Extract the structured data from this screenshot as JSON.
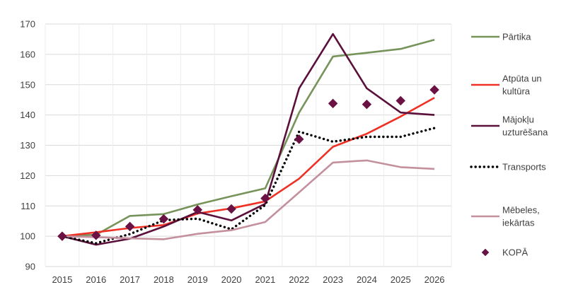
{
  "chart_data": {
    "type": "line",
    "title": "",
    "xlabel": "",
    "ylabel": "",
    "ylim": [
      90,
      170
    ],
    "yticks": [
      90,
      100,
      110,
      120,
      130,
      140,
      150,
      160,
      170
    ],
    "categories": [
      "2015",
      "2016",
      "2017",
      "2018",
      "2019",
      "2020",
      "2021",
      "2022",
      "2023",
      "2024",
      "2025",
      "2026"
    ],
    "grid": "horizontal",
    "legend_position": "right",
    "series": [
      {
        "name": "Pārtika",
        "legend_lines": [
          "Pārtika"
        ],
        "style": "line",
        "color": "#76935a",
        "values": [
          100,
          100.5,
          106.7,
          107.3,
          110.5,
          113.2,
          115.8,
          140.8,
          159.3,
          160.5,
          161.8,
          164.8
        ]
      },
      {
        "name": "Atpūta un kultūra",
        "legend_lines": [
          "Atpūta un",
          "kultūra"
        ],
        "style": "line",
        "color": "#ee3124",
        "values": [
          100,
          101.3,
          102.7,
          103.7,
          107.5,
          109.2,
          111.5,
          119.0,
          129.5,
          133.8,
          139.5,
          145.7
        ]
      },
      {
        "name": "Mājokļu uzturēšana",
        "legend_lines": [
          "Mājokļu",
          "uzturēšana"
        ],
        "style": "line",
        "color": "#5b0f3b",
        "values": [
          100,
          97.2,
          99.2,
          103.2,
          108.0,
          105.2,
          110.7,
          148.8,
          166.7,
          148.8,
          140.8,
          140.0
        ]
      },
      {
        "name": "Transports",
        "legend_lines": [
          "Transports"
        ],
        "style": "dotted",
        "color": "#000000",
        "values": [
          100,
          97.7,
          100.7,
          105.3,
          105.8,
          102.3,
          110.3,
          134.5,
          131.2,
          132.8,
          132.8,
          135.7
        ]
      },
      {
        "name": "Mēbeles, iekārtas",
        "legend_lines": [
          "Mēbeles,",
          "iekārtas"
        ],
        "style": "line",
        "color": "#c4909e",
        "values": [
          100,
          99.7,
          99.3,
          99.0,
          100.8,
          102.0,
          104.7,
          114.5,
          124.3,
          125.0,
          122.8,
          122.2
        ]
      },
      {
        "name": "KOPĀ",
        "legend_lines": [
          "KOPĀ"
        ],
        "style": "marker",
        "color": "#6b1244",
        "values": [
          100,
          100.3,
          103.2,
          105.7,
          108.7,
          109.0,
          112.5,
          132.0,
          143.8,
          143.5,
          144.7,
          148.3
        ]
      }
    ]
  }
}
